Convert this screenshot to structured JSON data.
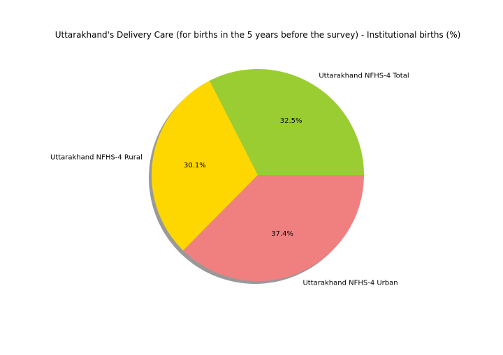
{
  "chart_data": {
    "type": "pie",
    "title": "Uttarakhand's Delivery Care (for births in the 5 years before the survey) - Institutional births (%)",
    "categories": [
      "Uttarakhand NFHS-4 Total",
      "Uttarakhand NFHS-4 Rural",
      "Uttarakhand NFHS-4 Urban"
    ],
    "values": [
      32.5,
      30.1,
      37.4
    ],
    "percent_labels": [
      "32.5%",
      "30.1%",
      "37.4%"
    ],
    "colors": [
      "#9acd32",
      "#ffd700",
      "#f08080"
    ],
    "start_angle_deg": 0,
    "direction": "counterclockwise",
    "shadow": true,
    "legend": "none"
  }
}
